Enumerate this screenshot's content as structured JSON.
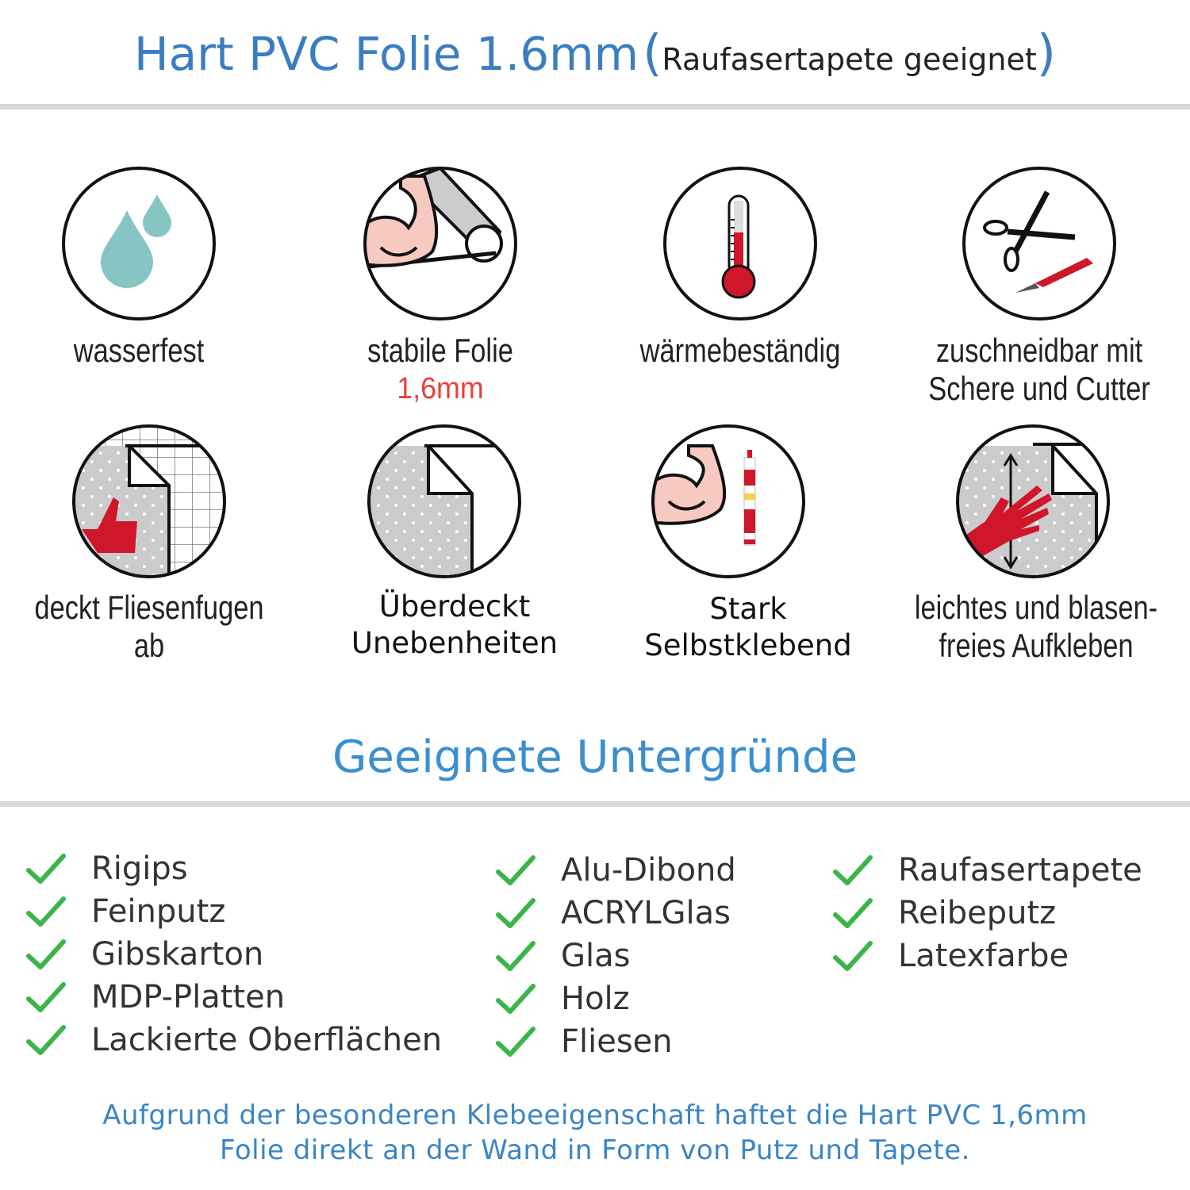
{
  "header": {
    "title": "Hart PVC Folie 1.6mm",
    "open_paren": "(",
    "subtitle": "Raufasertapete geeignet",
    "close_paren": ")"
  },
  "features": [
    {
      "label": "wasserfest",
      "icon": "water-drops-icon"
    },
    {
      "label": "stabile Folie",
      "highlight": "1,6mm",
      "icon": "strong-arm-foil-icon"
    },
    {
      "label": "wärmebeständig",
      "icon": "thermometer-icon"
    },
    {
      "label": "zuschneidbar mit",
      "label2": "Schere und Cutter",
      "icon": "scissors-cutter-icon"
    },
    {
      "label": "deckt Fliesenfugen ab",
      "icon": "thumbs-up-tiles-icon"
    },
    {
      "label": "Überdeckt",
      "label2": "Unebenheiten",
      "icon": "foil-corner-icon"
    },
    {
      "label": "Stark",
      "label2": "Selbstklebend",
      "icon": "strong-arm-glue-icon"
    },
    {
      "label": "leichtes und blasen-",
      "label2": "freies Aufkleben",
      "icon": "hand-smoothing-icon"
    }
  ],
  "surfaces": {
    "title": "Geeignete Untergründe",
    "col1": [
      "Rigips",
      "Feinputz",
      "Gibskarton",
      "MDP-Platten",
      "Lackierte Oberflächen"
    ],
    "col2": [
      "Alu-Dibond",
      "ACRYLGlas",
      "Glas",
      "Holz",
      "Fliesen"
    ],
    "col3": [
      "Raufasertapete",
      "Reibeputz",
      "Latexfarbe"
    ]
  },
  "footer": {
    "line1": "Aufgrund der besonderen Klebeeigenschaft haftet die Hart PVC 1,6mm",
    "line2": "Folie direkt an der Wand in Form von Putz und Tapete."
  },
  "colors": {
    "title_blue": "#3a7dc0",
    "check_green": "#3bb54a",
    "accent_red": "#d0162a",
    "highlight_red": "#e8413c"
  }
}
